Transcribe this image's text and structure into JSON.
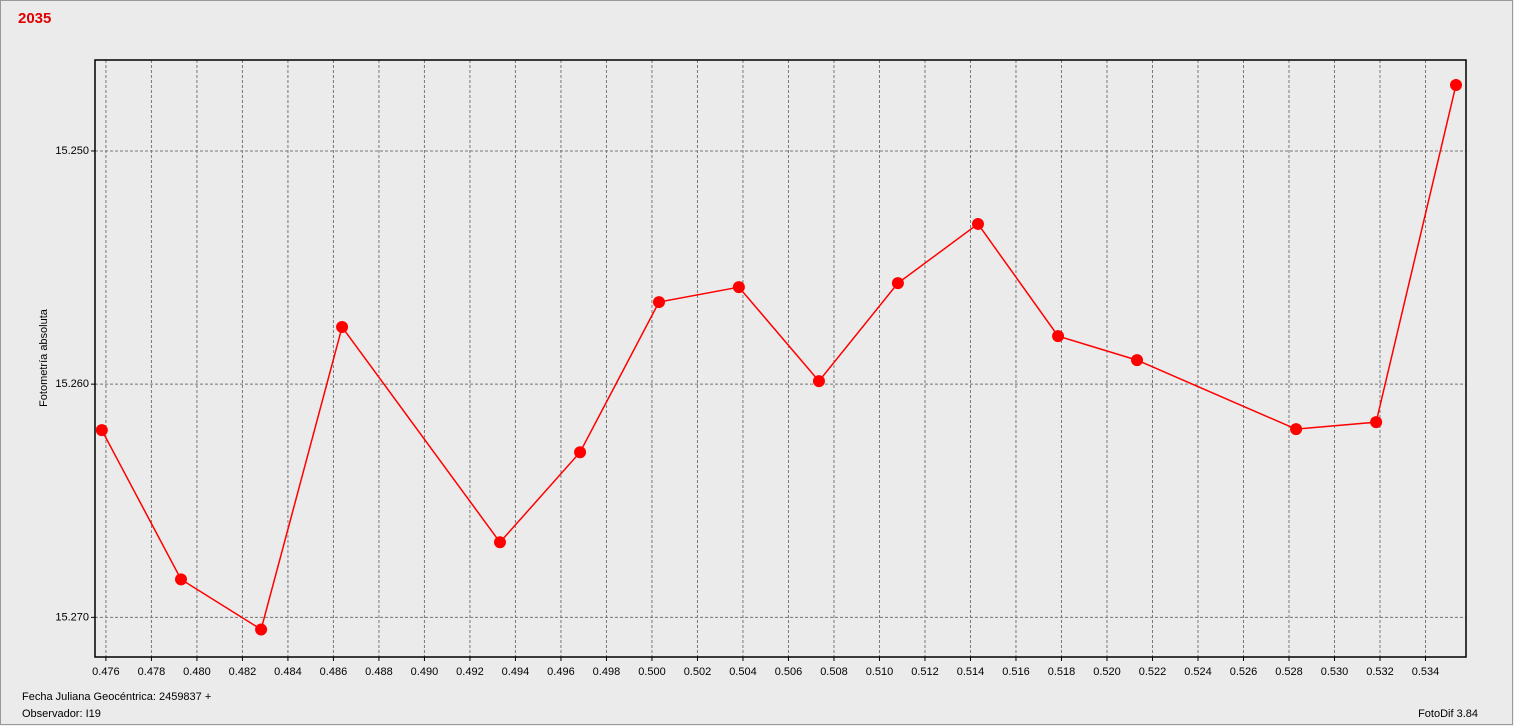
{
  "chart_data": {
    "type": "line",
    "title": "2035",
    "ylabel": "Fotometría absoluta",
    "footer": {
      "xlabel": "Fecha Juliana Geocéntrica: 2459837 +",
      "observer": "Observador: I19",
      "software": "FotoDif 3.84"
    },
    "x": [
      0.47582,
      0.4793,
      0.48282,
      0.48638,
      0.49332,
      0.49684,
      0.50031,
      0.50382,
      0.50734,
      0.51081,
      0.51433,
      0.51785,
      0.52132,
      0.52831,
      0.53183,
      0.53534
    ],
    "series": [
      {
        "color": "#ff0000",
        "values": [
          15.26197,
          15.26837,
          15.27052,
          15.25755,
          15.26678,
          15.26292,
          15.25648,
          15.25584,
          15.25987,
          15.25567,
          15.25313,
          15.25794,
          15.25897,
          15.26193,
          15.26163,
          15.24717
        ]
      }
    ],
    "xlim": [
      0.47552,
      0.53578
    ],
    "ylim": [
      15.2461,
      15.2717
    ],
    "y_inverted": true,
    "xticks": [
      0.476,
      0.478,
      {
        "value": 0.48,
        "label": "0.480"
      },
      0.482,
      0.484,
      0.486,
      0.488,
      {
        "value": 0.49,
        "label": "0.490"
      },
      0.492,
      0.494,
      0.496,
      0.498,
      {
        "value": 0.5,
        "label": "0.500"
      },
      0.502,
      0.504,
      0.506,
      0.508,
      {
        "value": 0.51,
        "label": "0.510"
      },
      0.512,
      0.514,
      0.516,
      0.518,
      {
        "value": 0.52,
        "label": "0.520"
      },
      0.522,
      0.524,
      0.526,
      0.528,
      {
        "value": 0.53,
        "label": "0.530"
      },
      0.532,
      0.534
    ],
    "yticks": [
      {
        "value": 15.25,
        "label": "15.250"
      },
      {
        "value": 15.26,
        "label": "15.260"
      },
      {
        "value": 15.27,
        "label": "15.270"
      }
    ],
    "grid": true
  }
}
